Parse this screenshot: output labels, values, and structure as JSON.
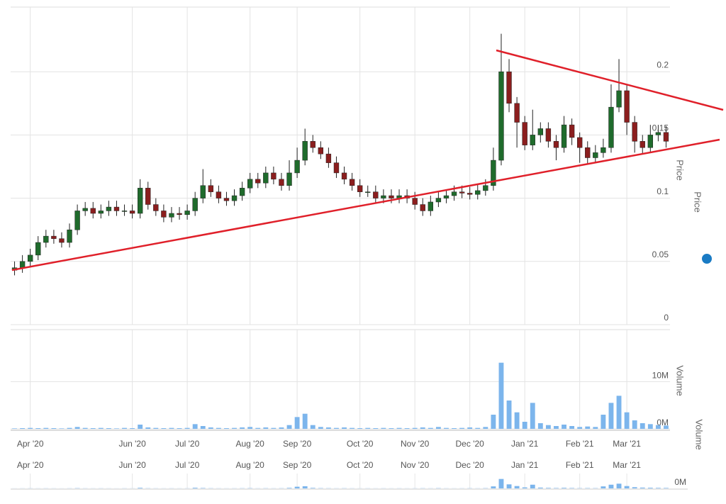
{
  "chart_data": {
    "type": "candlestick",
    "price_axis_title": "Price",
    "volume_axis_title": "Volume",
    "categories": [
      null,
      null,
      "Apr '20",
      null,
      null,
      null,
      null,
      null,
      null,
      null,
      null,
      null,
      null,
      null,
      null,
      "Jun '20",
      null,
      null,
      null,
      null,
      null,
      null,
      "Jul '20",
      null,
      null,
      null,
      null,
      null,
      null,
      null,
      "Aug '20",
      null,
      null,
      null,
      null,
      null,
      "Sep '20",
      null,
      null,
      null,
      null,
      null,
      null,
      null,
      "Oct '20",
      null,
      null,
      null,
      null,
      null,
      null,
      "Nov '20",
      null,
      null,
      null,
      null,
      null,
      null,
      "Dec '20",
      null,
      null,
      null,
      null,
      null,
      null,
      "Jan '21",
      null,
      null,
      null,
      null,
      null,
      null,
      "Feb '21",
      null,
      null,
      null,
      null,
      null,
      "Mar '21",
      null,
      null,
      null,
      null,
      null
    ],
    "open": [
      0.043,
      0.045,
      0.05,
      0.055,
      0.065,
      0.07,
      0.068,
      0.065,
      0.075,
      0.09,
      0.092,
      0.088,
      0.09,
      0.093,
      0.09,
      0.09,
      0.088,
      0.108,
      0.095,
      0.09,
      0.085,
      0.088,
      0.087,
      0.09,
      0.1,
      0.11,
      0.105,
      0.1,
      0.098,
      0.102,
      0.108,
      0.115,
      0.112,
      0.12,
      0.115,
      0.11,
      0.12,
      0.13,
      0.145,
      0.14,
      0.135,
      0.128,
      0.12,
      0.115,
      0.11,
      0.105,
      0.105,
      0.1,
      0.102,
      0.1,
      0.102,
      0.1,
      0.095,
      0.09,
      0.097,
      0.1,
      0.102,
      0.105,
      0.104,
      0.103,
      0.106,
      0.11,
      0.13,
      0.2,
      0.175,
      0.16,
      0.142,
      0.15,
      0.155,
      0.145,
      0.14,
      0.158,
      0.148,
      0.14,
      0.132,
      0.136,
      0.14,
      0.172,
      0.185,
      0.16,
      0.145,
      0.14,
      0.15,
      0.152
    ],
    "high": [
      0.05,
      0.055,
      0.06,
      0.07,
      0.075,
      0.075,
      0.073,
      0.08,
      0.095,
      0.097,
      0.097,
      0.095,
      0.098,
      0.098,
      0.095,
      0.095,
      0.115,
      0.113,
      0.1,
      0.095,
      0.093,
      0.093,
      0.095,
      0.105,
      0.123,
      0.115,
      0.11,
      0.105,
      0.107,
      0.113,
      0.12,
      0.12,
      0.125,
      0.125,
      0.12,
      0.13,
      0.14,
      0.155,
      0.15,
      0.145,
      0.14,
      0.133,
      0.125,
      0.12,
      0.115,
      0.11,
      0.11,
      0.107,
      0.107,
      0.107,
      0.107,
      0.105,
      0.1,
      0.102,
      0.105,
      0.107,
      0.11,
      0.11,
      0.109,
      0.111,
      0.115,
      0.14,
      0.23,
      0.21,
      0.18,
      0.165,
      0.17,
      0.16,
      0.16,
      0.15,
      0.165,
      0.163,
      0.152,
      0.145,
      0.142,
      0.147,
      0.19,
      0.21,
      0.19,
      0.165,
      0.15,
      0.158,
      0.158,
      0.157
    ],
    "low": [
      0.039,
      0.041,
      0.046,
      0.051,
      0.061,
      0.064,
      0.061,
      0.061,
      0.071,
      0.086,
      0.084,
      0.084,
      0.086,
      0.086,
      0.086,
      0.084,
      0.084,
      0.091,
      0.086,
      0.081,
      0.081,
      0.083,
      0.083,
      0.086,
      0.096,
      0.101,
      0.096,
      0.094,
      0.094,
      0.098,
      0.104,
      0.108,
      0.108,
      0.111,
      0.106,
      0.106,
      0.116,
      0.126,
      0.136,
      0.131,
      0.124,
      0.116,
      0.111,
      0.106,
      0.101,
      0.101,
      0.096,
      0.096,
      0.096,
      0.096,
      0.096,
      0.091,
      0.086,
      0.086,
      0.093,
      0.096,
      0.098,
      0.1,
      0.099,
      0.099,
      0.102,
      0.106,
      0.126,
      0.168,
      0.14,
      0.138,
      0.138,
      0.144,
      0.14,
      0.13,
      0.136,
      0.142,
      0.128,
      0.127,
      0.128,
      0.132,
      0.136,
      0.168,
      0.15,
      0.136,
      0.135,
      0.136,
      0.145,
      0.14
    ],
    "close": [
      0.045,
      0.05,
      0.055,
      0.065,
      0.07,
      0.068,
      0.065,
      0.075,
      0.09,
      0.092,
      0.088,
      0.09,
      0.093,
      0.09,
      0.09,
      0.088,
      0.108,
      0.095,
      0.09,
      0.085,
      0.088,
      0.087,
      0.09,
      0.1,
      0.11,
      0.105,
      0.1,
      0.098,
      0.102,
      0.108,
      0.115,
      0.112,
      0.12,
      0.115,
      0.11,
      0.12,
      0.13,
      0.145,
      0.14,
      0.135,
      0.128,
      0.12,
      0.115,
      0.11,
      0.105,
      0.105,
      0.1,
      0.102,
      0.1,
      0.102,
      0.1,
      0.095,
      0.09,
      0.097,
      0.1,
      0.102,
      0.105,
      0.104,
      0.103,
      0.106,
      0.11,
      0.13,
      0.2,
      0.175,
      0.16,
      0.142,
      0.15,
      0.155,
      0.145,
      0.14,
      0.158,
      0.148,
      0.14,
      0.132,
      0.136,
      0.14,
      0.172,
      0.185,
      0.16,
      0.145,
      0.14,
      0.15,
      0.152,
      0.145
    ],
    "volume": [
      100000,
      150000,
      200000,
      150000,
      200000,
      150000,
      100000,
      200000,
      400000,
      200000,
      150000,
      200000,
      150000,
      100000,
      200000,
      150000,
      900000,
      300000,
      200000,
      150000,
      200000,
      150000,
      200000,
      1000000,
      600000,
      300000,
      200000,
      150000,
      200000,
      300000,
      400000,
      200000,
      300000,
      200000,
      300000,
      800000,
      2500000,
      3200000,
      800000,
      400000,
      300000,
      200000,
      300000,
      200000,
      150000,
      200000,
      150000,
      200000,
      150000,
      200000,
      150000,
      200000,
      300000,
      200000,
      400000,
      200000,
      150000,
      200000,
      300000,
      200000,
      400000,
      3000000,
      14000000,
      6000000,
      3500000,
      1500000,
      5500000,
      1200000,
      800000,
      600000,
      900000,
      600000,
      400000,
      500000,
      400000,
      3000000,
      5500000,
      7000000,
      3500000,
      1800000,
      1200000,
      1000000,
      800000,
      700000
    ],
    "ylim": [
      0,
      0.25
    ],
    "yticks": [
      0,
      0.05,
      0.1,
      0.15,
      0.2
    ],
    "y2lim": [
      0,
      21000000
    ],
    "y2ticks": [
      {
        "value": 0,
        "label": "0M"
      },
      {
        "value": 10000000,
        "label": "10M"
      }
    ],
    "grid": true,
    "up_color": "#1f6b2c",
    "down_color": "#8b1e1e",
    "wick_color": "#222222",
    "volume_color": "#7cb5ec"
  }
}
